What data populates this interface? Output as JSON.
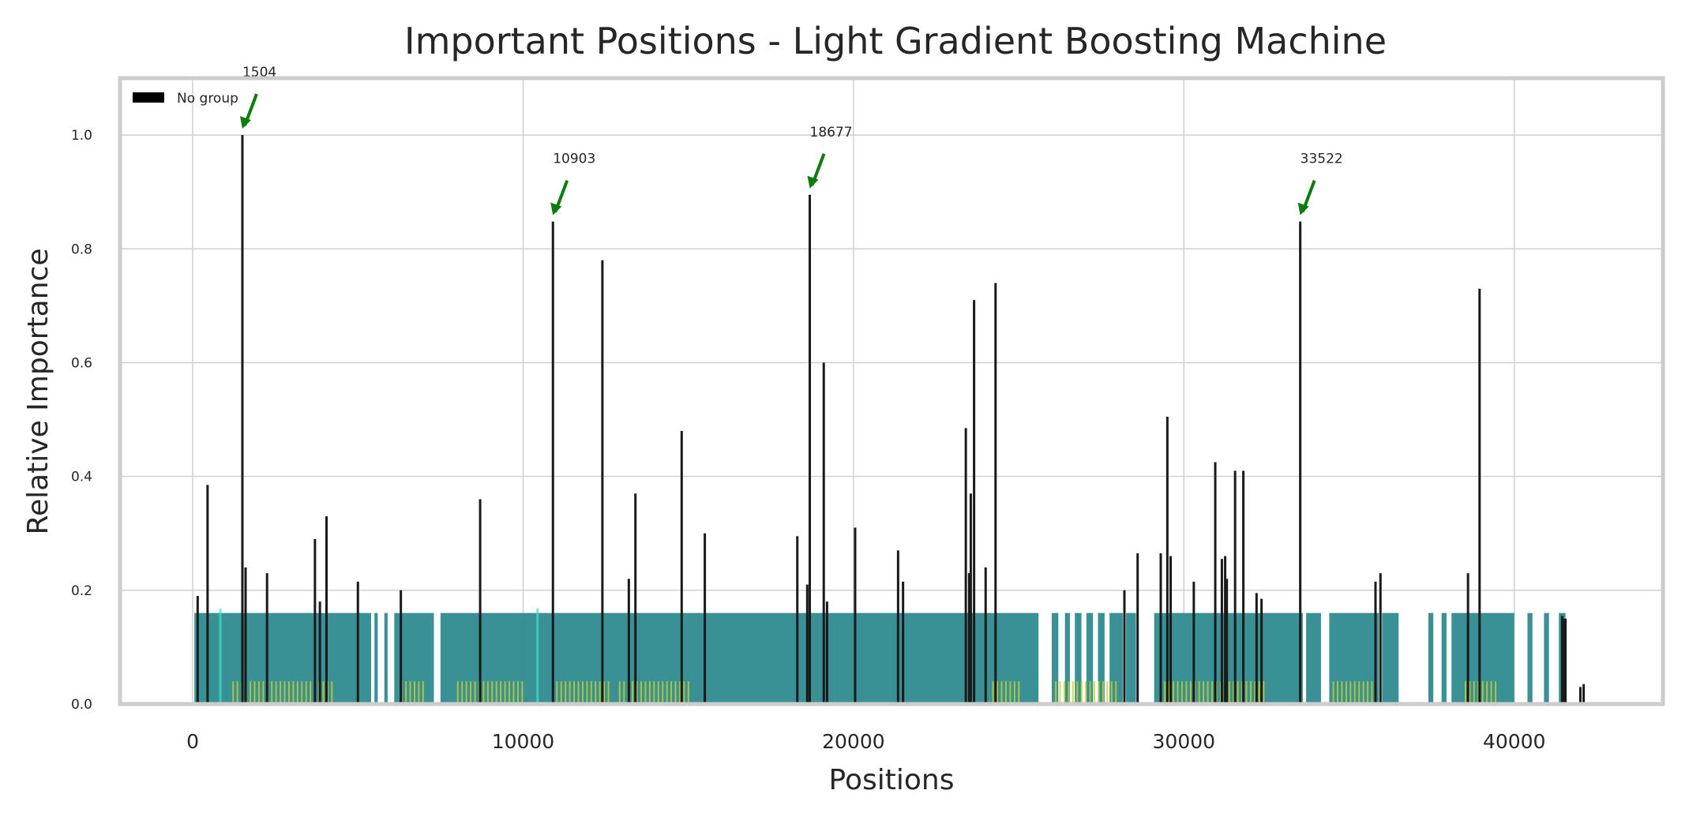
{
  "chart_data": {
    "type": "bar",
    "title": "Important Positions - Light Gradient Boosting Machine",
    "xlabel": "Positions",
    "ylabel": "Relative Importance",
    "xlim": [
      -2200,
      44500
    ],
    "ylim": [
      0,
      1.1
    ],
    "grid": true,
    "legend_placement": "top-left",
    "xticks": [
      0,
      10000,
      20000,
      30000,
      40000
    ],
    "yticks": [
      0.0,
      0.2,
      0.4,
      0.6,
      0.8,
      1.0
    ],
    "legend": [
      {
        "label": "No group",
        "color": "#000000"
      }
    ],
    "colors": {
      "importance": "#1a1a1a",
      "group_band": "#2e8b8f",
      "group_band_light": "#40e0d0",
      "low_band": "#c8d12a",
      "arrow": "#0a7d0a"
    },
    "group_band_height": 0.16,
    "group_bands": [
      [
        50,
        5400
      ],
      [
        5500,
        5600
      ],
      [
        5800,
        5900
      ],
      [
        6100,
        7300
      ],
      [
        7500,
        25600
      ],
      [
        26000,
        26200
      ],
      [
        26400,
        26550
      ],
      [
        26700,
        26900
      ],
      [
        27050,
        27250
      ],
      [
        27400,
        27600
      ],
      [
        27750,
        28150
      ],
      [
        28250,
        28550
      ],
      [
        29100,
        33600
      ],
      [
        33700,
        34150
      ],
      [
        34400,
        35900
      ],
      [
        36000,
        36500
      ],
      [
        37400,
        37550
      ],
      [
        37800,
        37950
      ],
      [
        38100,
        40000
      ],
      [
        40400,
        40550
      ],
      [
        40900,
        41050
      ],
      [
        41350,
        41550
      ]
    ],
    "low_bands": [
      [
        1200,
        4200
      ],
      [
        6300,
        7000
      ],
      [
        8000,
        10000
      ],
      [
        11000,
        12600
      ],
      [
        12900,
        15000
      ],
      [
        24200,
        25000
      ],
      [
        26100,
        28000
      ],
      [
        29400,
        32500
      ],
      [
        34500,
        35700
      ],
      [
        38500,
        39500
      ]
    ],
    "series": [
      {
        "name": "No group",
        "x": [
          150,
          450,
          1504,
          1600,
          2250,
          3700,
          3850,
          4050,
          5000,
          6300,
          8700,
          10903,
          12400,
          13200,
          13400,
          14800,
          15500,
          18300,
          18600,
          18677,
          19100,
          19200,
          20050,
          21350,
          21500,
          23400,
          23500,
          23550,
          23650,
          24000,
          24300,
          28200,
          28600,
          29300,
          29500,
          29600,
          30300,
          30950,
          31150,
          31250,
          31300,
          31550,
          31800,
          32200,
          32350,
          33522,
          35800,
          35950,
          38600,
          38950,
          41450,
          41500,
          41550,
          42000,
          42100
        ],
        "values": [
          0.19,
          0.385,
          1.0,
          0.24,
          0.23,
          0.29,
          0.18,
          0.33,
          0.215,
          0.2,
          0.36,
          0.848,
          0.78,
          0.22,
          0.37,
          0.48,
          0.3,
          0.295,
          0.21,
          0.895,
          0.6,
          0.18,
          0.31,
          0.27,
          0.215,
          0.485,
          0.23,
          0.37,
          0.71,
          0.24,
          0.74,
          0.2,
          0.265,
          0.265,
          0.505,
          0.26,
          0.215,
          0.425,
          0.255,
          0.26,
          0.22,
          0.41,
          0.41,
          0.195,
          0.185,
          0.848,
          0.215,
          0.23,
          0.23,
          0.73,
          0.155,
          0.15,
          0.15,
          0.03,
          0.035
        ]
      }
    ],
    "annotations": [
      {
        "label": "1504",
        "x": 1504,
        "y": 1.0
      },
      {
        "label": "10903",
        "x": 10903,
        "y": 0.848
      },
      {
        "label": "18677",
        "x": 18677,
        "y": 0.895
      },
      {
        "label": "33522",
        "x": 33522,
        "y": 0.848
      }
    ]
  }
}
